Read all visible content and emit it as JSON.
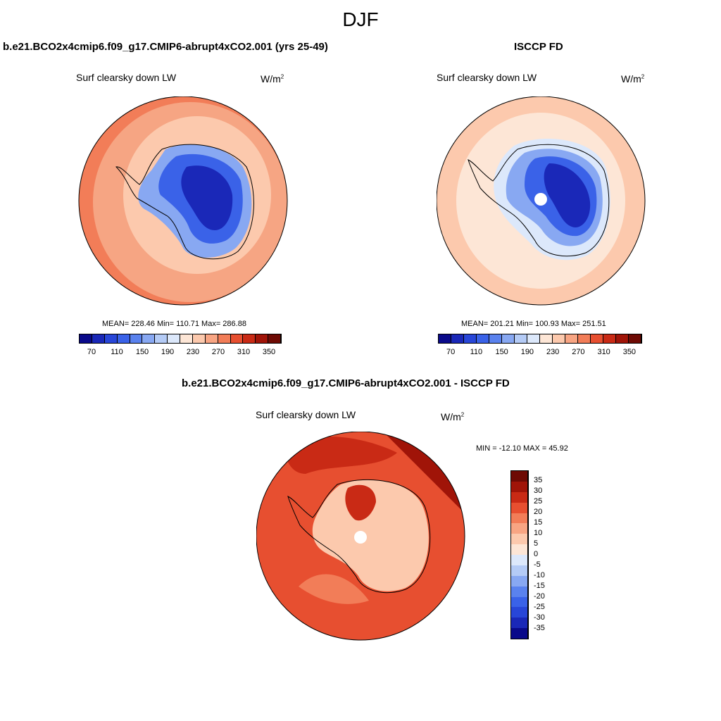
{
  "season_title": "DJF",
  "panels": [
    {
      "id": "model",
      "title": "b.e21.BCO2x4cmip6.f09_g17.CMIP6-abrupt4xCO2.001 (yrs 25-49)",
      "variable": "Surf clearsky down LW",
      "units_base": "W/m",
      "units_exp": "2",
      "stats": {
        "mean": "228.46",
        "min": "110.71",
        "max": "286.88"
      },
      "stats_text": "MEAN= 228.46  Min= 110.71  Max= 286.88",
      "palette": [
        "#0a0a8a",
        "#1a28b8",
        "#2846d8",
        "#3a62e8",
        "#5a82ee",
        "#88a8f2",
        "#b4cbf6",
        "#dce8fb",
        "#fde6d6",
        "#fcc9ad",
        "#f8a583",
        "#f27d58",
        "#e74f30",
        "#c92a15",
        "#a01408",
        "#6e0a04"
      ],
      "colorbar_ticks": [
        "70",
        "110",
        "150",
        "190",
        "230",
        "270",
        "310",
        "350"
      ]
    },
    {
      "id": "obs",
      "title": "ISCCP FD",
      "variable": "Surf clearsky down LW",
      "units_base": "W/m",
      "units_exp": "2",
      "stats": {
        "mean": "201.21",
        "min": "100.93",
        "max": "251.51"
      },
      "stats_text": "MEAN= 201.21  Min= 100.93  Max= 251.51",
      "colorbar_ticks": [
        "70",
        "110",
        "150",
        "190",
        "230",
        "270",
        "310",
        "350"
      ]
    },
    {
      "id": "diff",
      "title": "b.e21.BCO2x4cmip6.f09_g17.CMIP6-abrupt4xCO2.001 - ISCCP FD",
      "variable": "Surf clearsky down LW",
      "units": "W/m",
      "minmax_text": "MIN = -12.10 MAX =  45.92",
      "stats": {
        "min": "-12.10",
        "max": "45.92"
      },
      "palette": [
        "#6e0a04",
        "#a01408",
        "#c92a15",
        "#e74f30",
        "#f27d58",
        "#f8a583",
        "#fcc9ad",
        "#fde6d6",
        "#dce8fb",
        "#b4cbf6",
        "#88a8f2",
        "#5a82ee",
        "#3a62e8",
        "#2846d8",
        "#1a28b8",
        "#0a0a8a"
      ],
      "colorbar_ticks": [
        "35",
        "30",
        "25",
        "20",
        "15",
        "10",
        "5",
        "0",
        "-5",
        "-10",
        "-15",
        "-20",
        "-25",
        "-30",
        "-35"
      ]
    }
  ],
  "colors": {
    "model_outer": "#f6a583",
    "model_mid": "#fcc9ad",
    "model_edge": "#f27d58",
    "obs_outer": "#fcc9ad",
    "obs_mid": "#fde6d6",
    "ice_dark": "#1a28b8",
    "ice_mid": "#3a62e8",
    "ice_light": "#88a8f2",
    "diff_outer": "#e74f30",
    "diff_dark": "#c92a15",
    "diff_darkest": "#a01408",
    "diff_light": "#f27d58",
    "diff_ice": "#fcc9ad"
  }
}
